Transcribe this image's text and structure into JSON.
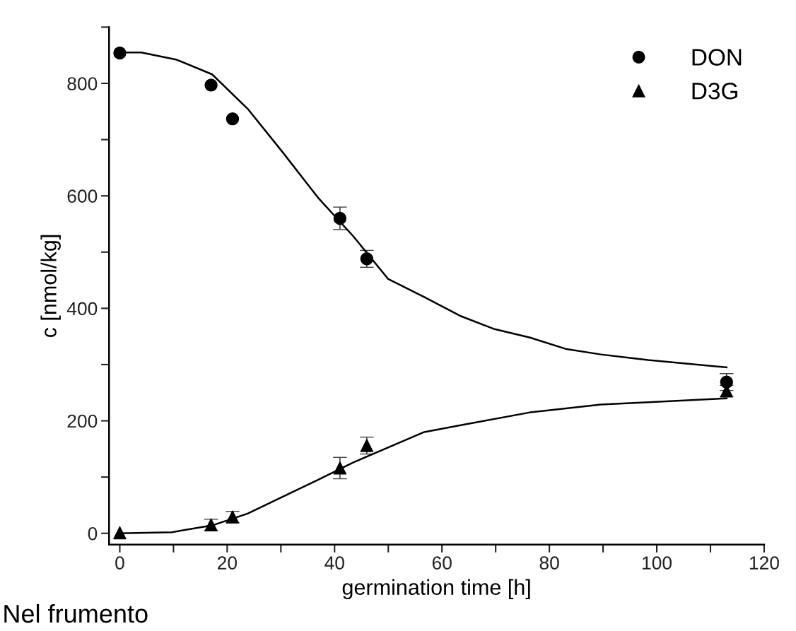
{
  "chart_data": {
    "type": "scatter",
    "xlabel": "germination time [h]",
    "ylabel": "c [nmol/kg]",
    "xlim": [
      -2,
      120
    ],
    "ylim": [
      -20,
      900
    ],
    "xticks": [
      0,
      {
        "value": 10,
        "label": null
      },
      20,
      {
        "value": 30,
        "label": null
      },
      40,
      {
        "value": 50,
        "label": null
      },
      60,
      {
        "value": 70,
        "label": null
      },
      80,
      {
        "value": 90,
        "label": null
      },
      100,
      {
        "value": 110,
        "label": null
      },
      120
    ],
    "yticks": [
      0,
      {
        "value": 100,
        "label": null
      },
      200,
      {
        "value": 300,
        "label": null
      },
      400,
      {
        "value": 500,
        "label": null
      },
      600,
      {
        "value": 700,
        "label": null
      },
      800,
      {
        "value": 900,
        "label": null
      }
    ],
    "grid": false,
    "legend": "top right",
    "series": [
      {
        "name": "DON",
        "color": "#000000",
        "marker": "circle",
        "x": [
          0,
          17,
          21,
          41,
          46,
          113
        ],
        "values": [
          854,
          797,
          737,
          560,
          488,
          269
        ],
        "errors": [
          null,
          null,
          null,
          20,
          15,
          15
        ]
      },
      {
        "name": "D3G",
        "color": "#000000",
        "marker": "triangle",
        "x": [
          0,
          17,
          21,
          41,
          46,
          113
        ],
        "values": [
          1,
          15,
          29,
          116,
          156,
          253
        ],
        "errors": [
          null,
          10,
          10,
          19,
          15,
          10
        ]
      },
      {
        "type": "line",
        "color": "#000000",
        "marker": "none",
        "line_style": "solid",
        "x": [
          0,
          4,
          10.6,
          17.2,
          23.8,
          30.3,
          36.9,
          43.5,
          50,
          56.7,
          63.3,
          69.8,
          76.4,
          83,
          89.6,
          98.4,
          113
        ],
        "values": [
          855,
          855,
          842,
          816,
          755,
          678,
          597,
          528,
          452,
          420,
          387,
          363,
          348,
          328,
          318,
          308,
          295
        ]
      },
      {
        "type": "line",
        "color": "#000000",
        "marker": "none",
        "line_style": "solid",
        "x": [
          0,
          9.7,
          17.2,
          23.8,
          30.3,
          36.9,
          43.5,
          56.7,
          63.3,
          76.4,
          89.6,
          98.4,
          113
        ],
        "values": [
          0,
          2,
          14,
          35,
          65,
          95,
          126,
          180,
          192,
          215,
          229,
          233,
          240
        ]
      }
    ],
    "annotations": [
      "Nel frumento"
    ]
  }
}
